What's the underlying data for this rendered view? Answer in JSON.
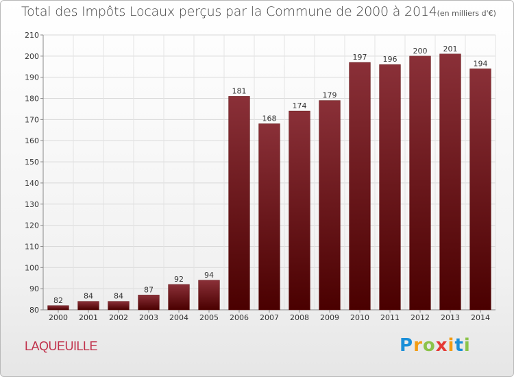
{
  "title": "Total des Impôts Locaux perçus par la Commune de 2000 à 2014",
  "unit": "(en milliers d'€)",
  "commune": "LAQUEUILLE",
  "logo": "Proxiti",
  "colors": {
    "bar_top": "#8a3038",
    "bar_bottom": "#4a0000",
    "accent": "#c0304a"
  },
  "chart_data": {
    "type": "bar",
    "title": "Total des Impôts Locaux perçus par la Commune de 2000 à 2014",
    "xlabel": "",
    "ylabel": "",
    "categories": [
      "2000",
      "2001",
      "2002",
      "2003",
      "2004",
      "2005",
      "2006",
      "2007",
      "2008",
      "2009",
      "2010",
      "2011",
      "2012",
      "2013",
      "2014"
    ],
    "values": [
      82,
      84,
      84,
      87,
      92,
      94,
      181,
      168,
      174,
      179,
      197,
      196,
      200,
      201,
      194
    ],
    "ylim": [
      80,
      210
    ],
    "yticks": [
      80,
      90,
      100,
      110,
      120,
      130,
      140,
      150,
      160,
      170,
      180,
      190,
      200,
      210
    ],
    "grid": true,
    "legend": "none"
  }
}
